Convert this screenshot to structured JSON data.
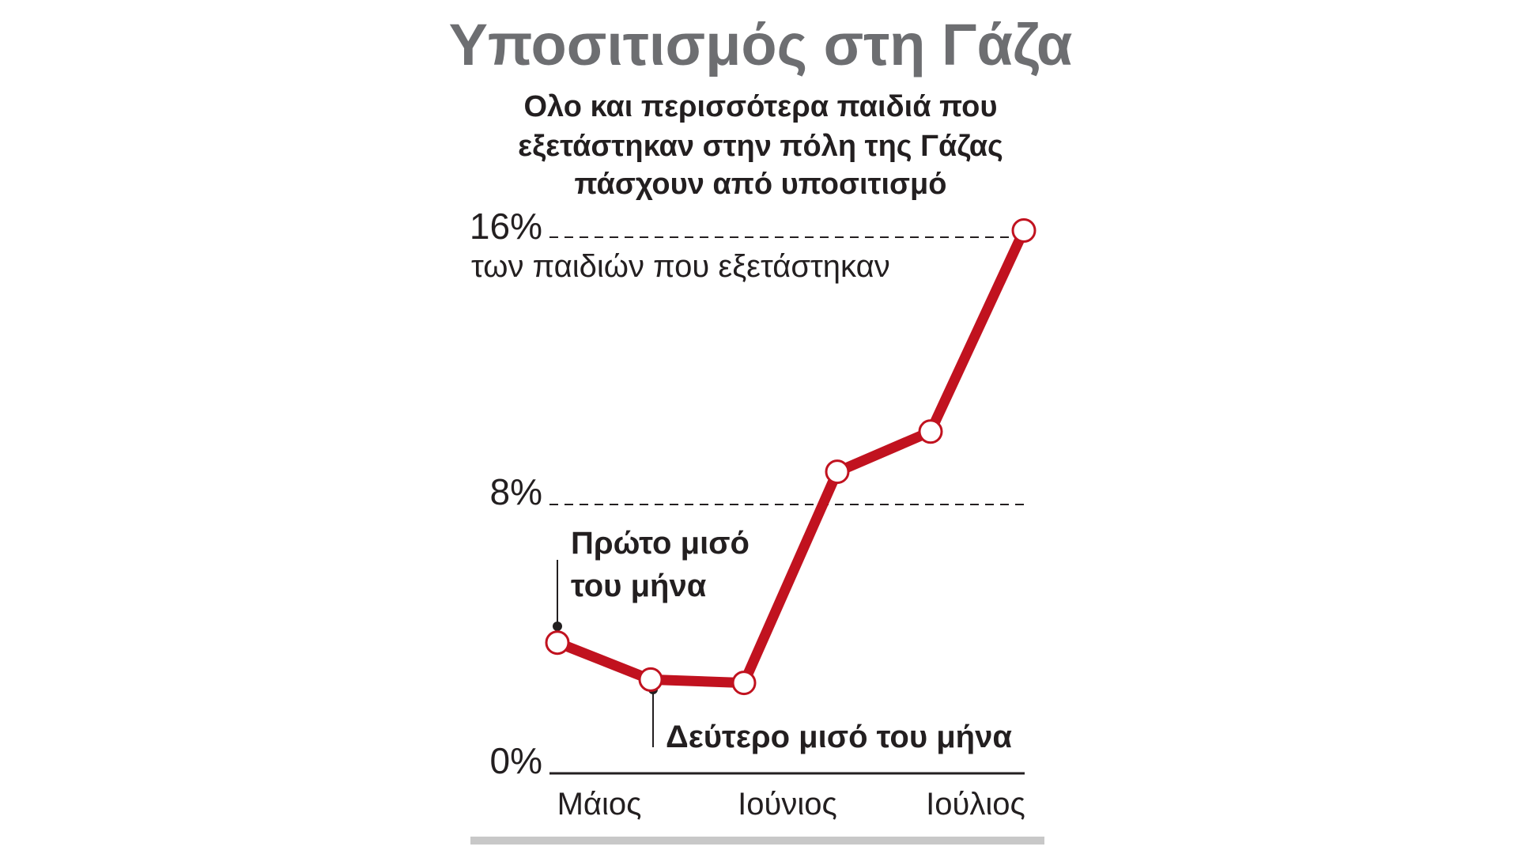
{
  "colors": {
    "line": "#c1121f",
    "title": "#6d6e71",
    "text": "#231f20",
    "grid": "#231f20",
    "baseline": "#231f20",
    "bottom_rule": "#c8c8c8",
    "marker_fill": "#ffffff"
  },
  "chart_data": {
    "type": "line",
    "title": "Υποσιτισμός στη Γάζα",
    "subtitle_lines": [
      "Ολο και περισσότερα παιδιά που",
      "εξετάστηκαν στην πόλη της Γάζας",
      "πάσχουν από υποσιτισμό"
    ],
    "unit_label": "των παιδιών που εξετάστηκαν",
    "y_ticks": [
      {
        "value": 0,
        "label": "0%"
      },
      {
        "value": 8,
        "label": "8%"
      },
      {
        "value": 16,
        "label": "16%"
      }
    ],
    "ylim": [
      0,
      16
    ],
    "x_labels": [
      "Μάιος",
      "Ιούνιος",
      "Ιούλιος"
    ],
    "points_per_month": 2,
    "x_index_range": [
      0,
      5
    ],
    "series": [
      {
        "points": [
          {
            "x": 0,
            "y": 3.9
          },
          {
            "x": 1,
            "y": 2.8
          },
          {
            "x": 2,
            "y": 2.7
          },
          {
            "x": 3,
            "y": 9.0
          },
          {
            "x": 4,
            "y": 10.2
          },
          {
            "x": 5,
            "y": 16.2
          }
        ]
      }
    ],
    "grid": "dashed at 8% and 16%",
    "annotations": {
      "first_half_lines": [
        "Πρώτο μισό",
        "του μήνα"
      ],
      "second_half": "Δεύτερο μισό του μήνα"
    }
  }
}
